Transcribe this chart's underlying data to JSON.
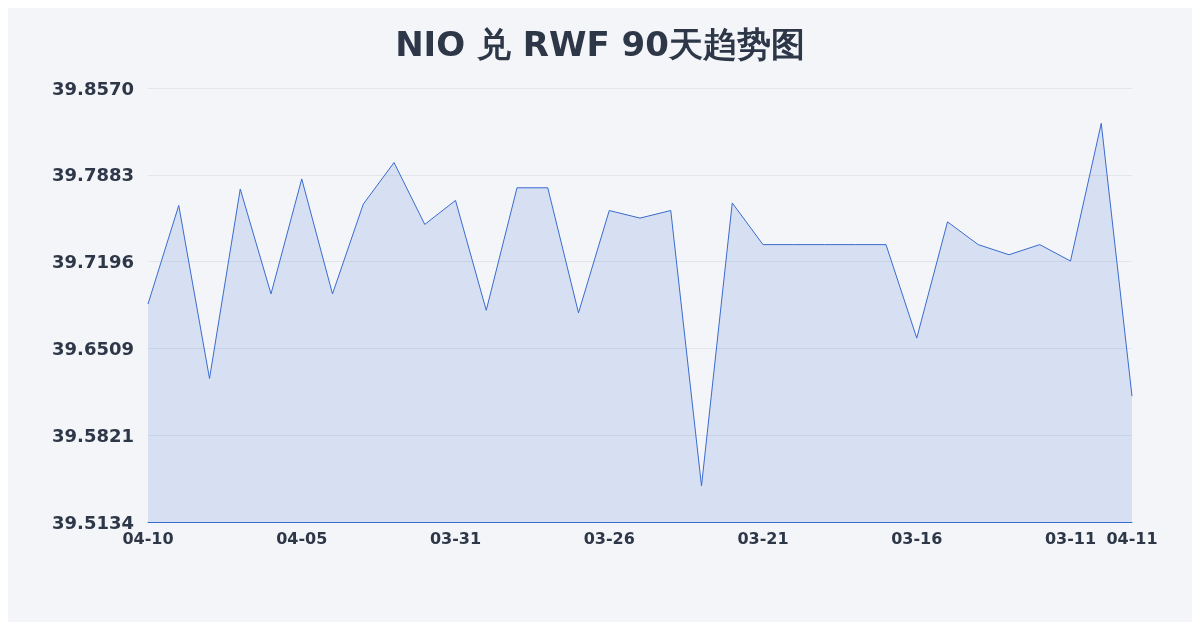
{
  "chart_data": {
    "type": "area",
    "title": "NIO 兑 RWF 90天趋势图",
    "categories": [
      "04-10",
      null,
      null,
      null,
      null,
      "04-05",
      null,
      null,
      null,
      null,
      "03-31",
      null,
      null,
      null,
      null,
      "03-26",
      null,
      null,
      null,
      null,
      "03-21",
      null,
      null,
      null,
      null,
      "03-16",
      null,
      null,
      null,
      null,
      "03-11",
      null,
      "04-11"
    ],
    "series": [
      {
        "color": "#3a6bd0",
        "values": [
          39.686,
          39.764,
          39.627,
          39.777,
          39.694,
          39.785,
          39.694,
          39.765,
          39.798,
          39.749,
          39.768,
          39.681,
          39.778,
          39.778,
          39.679,
          39.76,
          39.754,
          39.76,
          39.542,
          39.766,
          39.733,
          39.733,
          39.733,
          39.733,
          39.733,
          39.659,
          39.751,
          39.733,
          39.725,
          39.733,
          39.72,
          39.829,
          39.613
        ]
      }
    ],
    "ylim": [
      39.5134,
      39.857
    ],
    "yticks": [
      39.5134,
      39.5821,
      39.6509,
      39.7196,
      39.7883,
      {
        "value": 39.857,
        "label": "39.8570"
      }
    ],
    "grid": "y",
    "marker": "none",
    "line_style": "solid"
  }
}
